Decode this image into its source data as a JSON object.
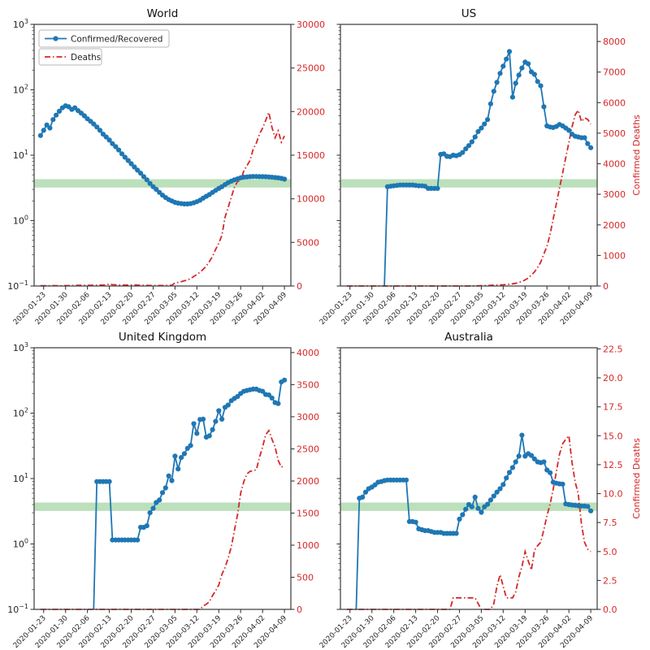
{
  "figure": {
    "background": "#ffffff",
    "colors": {
      "ratio": "#1f77b4",
      "deaths": "#d62728",
      "band": "#2ca02c",
      "band_opacity": 0.32,
      "axis": "#3a3a3a",
      "tick_text": "#262626",
      "right_tick_text": "#d62728",
      "legend_border": "#b7b7b7"
    },
    "legend": [
      {
        "label": "Confirmed/Recovered",
        "style": "solid-line-circle-marker",
        "color": "#1f77b4"
      },
      {
        "label": "Deaths",
        "style": "dash-dot-line",
        "color": "#d62728"
      }
    ],
    "left_axis": {
      "scale": "log",
      "ylim": [
        0.1,
        1000
      ],
      "tick_exponents": [
        -1,
        0,
        1,
        2,
        3
      ]
    },
    "band": {
      "ymin": 3.2,
      "ymax": 4.3
    },
    "x_tick_labels": [
      "2020-01-23",
      "2020-01-30",
      "2020-02-06",
      "2020-02-13",
      "2020-02-20",
      "2020-02-27",
      "2020-03-05",
      "2020-03-12",
      "2020-03-19",
      "2020-03-26",
      "2020-04-02",
      "2020-04-09"
    ],
    "x_tick_indices": [
      1,
      8,
      15,
      22,
      29,
      36,
      43,
      50,
      57,
      64,
      71,
      78
    ],
    "dates": [
      "2020-01-22",
      "2020-01-23",
      "2020-01-24",
      "2020-01-25",
      "2020-01-26",
      "2020-01-27",
      "2020-01-28",
      "2020-01-29",
      "2020-01-30",
      "2020-01-31",
      "2020-02-01",
      "2020-02-02",
      "2020-02-03",
      "2020-02-04",
      "2020-02-05",
      "2020-02-06",
      "2020-02-07",
      "2020-02-08",
      "2020-02-09",
      "2020-02-10",
      "2020-02-11",
      "2020-02-12",
      "2020-02-13",
      "2020-02-14",
      "2020-02-15",
      "2020-02-16",
      "2020-02-17",
      "2020-02-18",
      "2020-02-19",
      "2020-02-20",
      "2020-02-21",
      "2020-02-22",
      "2020-02-23",
      "2020-02-24",
      "2020-02-25",
      "2020-02-26",
      "2020-02-27",
      "2020-02-28",
      "2020-02-29",
      "2020-03-01",
      "2020-03-02",
      "2020-03-03",
      "2020-03-04",
      "2020-03-05",
      "2020-03-06",
      "2020-03-07",
      "2020-03-08",
      "2020-03-09",
      "2020-03-10",
      "2020-03-11",
      "2020-03-12",
      "2020-03-13",
      "2020-03-14",
      "2020-03-15",
      "2020-03-16",
      "2020-03-17",
      "2020-03-18",
      "2020-03-19",
      "2020-03-20",
      "2020-03-21",
      "2020-03-22",
      "2020-03-23",
      "2020-03-24",
      "2020-03-25",
      "2020-03-26",
      "2020-03-27",
      "2020-03-28",
      "2020-03-29",
      "2020-03-30",
      "2020-03-31",
      "2020-04-01",
      "2020-04-02",
      "2020-04-03",
      "2020-04-04",
      "2020-04-05",
      "2020-04-06",
      "2020-04-07",
      "2020-04-08",
      "2020-04-09"
    ]
  },
  "chart_data": [
    {
      "id": "world",
      "type": "line",
      "title": "World",
      "right_ymax": 30000,
      "right_ticks": [
        0,
        5000,
        10000,
        15000,
        20000,
        25000,
        30000
      ],
      "right_tick_labels": [
        "0",
        "5000",
        "10000",
        "15000",
        "20000",
        "25000",
        "30000"
      ],
      "right_ylabel": null,
      "series": [
        {
          "name": "Confirmed/Recovered",
          "axis": "left-log",
          "values": [
            20,
            24,
            29,
            26,
            35,
            41,
            47,
            53,
            57,
            55,
            50,
            53,
            48,
            44,
            40,
            36,
            33,
            30,
            27,
            24,
            21,
            19,
            17,
            15,
            13.5,
            12,
            10.5,
            9.3,
            8.3,
            7.4,
            6.6,
            5.9,
            5.3,
            4.7,
            4.2,
            3.7,
            3.3,
            3.0,
            2.7,
            2.45,
            2.25,
            2.1,
            2.0,
            1.9,
            1.85,
            1.82,
            1.8,
            1.8,
            1.82,
            1.87,
            1.95,
            2.05,
            2.2,
            2.35,
            2.5,
            2.7,
            2.9,
            3.1,
            3.3,
            3.55,
            3.8,
            4.0,
            4.2,
            4.35,
            4.5,
            4.6,
            4.65,
            4.7,
            4.72,
            4.72,
            4.7,
            4.7,
            4.68,
            4.65,
            4.6,
            4.55,
            4.5,
            4.42,
            4.3
          ]
        },
        {
          "name": "Deaths",
          "axis": "right-linear",
          "values": [
            25,
            25,
            30,
            35,
            45,
            40,
            30,
            40,
            45,
            45,
            55,
            65,
            70,
            75,
            70,
            75,
            85,
            90,
            95,
            100,
            105,
            110,
            254,
            150,
            143,
            110,
            100,
            105,
            100,
            110,
            120,
            100,
            90,
            80,
            70,
            60,
            55,
            52,
            55,
            58,
            65,
            75,
            90,
            350,
            420,
            500,
            600,
            700,
            850,
            1100,
            1300,
            1600,
            1900,
            2300,
            2800,
            3400,
            4200,
            4900,
            5800,
            7900,
            9000,
            10200,
            11300,
            12000,
            12100,
            13200,
            13800,
            14400,
            15700,
            16400,
            17400,
            18100,
            19000,
            19900,
            18200,
            17000,
            17800,
            16500,
            17200
          ]
        }
      ]
    },
    {
      "id": "us",
      "type": "line",
      "title": "US",
      "right_ymax": 8560,
      "right_ticks": [
        0,
        1000,
        2000,
        3000,
        4000,
        5000,
        6000,
        7000,
        8000
      ],
      "right_tick_labels": [
        "0",
        "1000",
        "2000",
        "3000",
        "4000",
        "5000",
        "6000",
        "7000",
        "8000"
      ],
      "right_ylabel": "Confirmed Deaths",
      "series": [
        {
          "name": "Confirmed/Recovered",
          "axis": "left-log",
          "values": [
            null,
            null,
            null,
            null,
            null,
            null,
            null,
            null,
            null,
            null,
            null,
            null,
            0,
            3.3,
            3.35,
            3.4,
            3.45,
            3.5,
            3.5,
            3.5,
            3.5,
            3.5,
            3.45,
            3.4,
            3.4,
            3.35,
            3.1,
            3.1,
            3.1,
            3.1,
            10.3,
            10.5,
            9.6,
            9.5,
            10.0,
            9.8,
            10.2,
            11,
            12.5,
            14,
            16,
            19,
            23,
            26,
            30,
            35,
            61,
            95,
            130,
            178,
            230,
            295,
            385,
            77,
            126,
            168,
            215,
            265,
            250,
            188,
            172,
            134,
            115,
            55,
            28,
            27,
            26.5,
            27.5,
            29.5,
            28,
            26,
            24,
            21,
            19.5,
            19,
            18.5,
            18.5,
            15,
            13
          ]
        },
        {
          "name": "Deaths",
          "axis": "right-linear",
          "values": [
            0,
            0,
            0,
            0,
            0,
            0,
            0,
            0,
            0,
            0,
            0,
            0,
            0,
            0,
            0,
            0,
            0,
            0,
            0,
            0,
            0,
            0,
            0,
            0,
            0,
            0,
            0,
            0,
            0,
            0,
            0,
            0,
            0,
            0,
            0,
            0,
            0,
            0,
            1,
            1,
            2,
            4,
            6,
            12,
            15,
            19,
            22,
            26,
            31,
            36,
            41,
            49,
            58,
            71,
            87,
            115,
            150,
            200,
            260,
            360,
            460,
            610,
            780,
            1050,
            1300,
            1700,
            2200,
            2700,
            3200,
            3700,
            4200,
            4700,
            5200,
            5600,
            5750,
            5380,
            5500,
            5450,
            5300
          ]
        }
      ]
    },
    {
      "id": "united-kingdom",
      "type": "line",
      "title": "United Kingdom",
      "right_ymax": 4075,
      "right_ticks": [
        0,
        500,
        1000,
        1500,
        2000,
        2500,
        3000,
        3500,
        4000
      ],
      "right_tick_labels": [
        "0",
        "500",
        "1000",
        "1500",
        "2000",
        "2500",
        "3000",
        "3500",
        "4000"
      ],
      "right_ylabel": null,
      "series": [
        {
          "name": "Confirmed/Recovered",
          "axis": "left-log",
          "values": [
            null,
            null,
            null,
            null,
            null,
            null,
            null,
            null,
            null,
            null,
            null,
            null,
            null,
            null,
            null,
            null,
            null,
            0,
            9,
            9,
            9,
            9,
            9,
            1.15,
            1.15,
            1.15,
            1.15,
            1.15,
            1.15,
            1.15,
            1.15,
            1.15,
            1.8,
            1.8,
            1.9,
            3.0,
            3.5,
            4.3,
            4.7,
            6.1,
            7.2,
            11,
            9.3,
            22,
            14,
            21,
            24,
            29,
            32,
            69,
            49,
            80,
            81,
            43,
            45,
            56,
            75,
            109,
            81,
            123,
            133,
            155,
            168,
            180,
            200,
            216,
            222,
            228,
            233,
            233,
            222,
            216,
            193,
            190,
            170,
            145,
            140,
            300,
            320
          ]
        },
        {
          "name": "Deaths",
          "axis": "right-linear",
          "values": [
            0,
            0,
            0,
            0,
            0,
            0,
            0,
            0,
            0,
            0,
            0,
            0,
            0,
            0,
            0,
            0,
            0,
            0,
            0,
            0,
            0,
            0,
            0,
            0,
            0,
            0,
            0,
            0,
            0,
            0,
            0,
            0,
            0,
            0,
            0,
            0,
            0,
            0,
            0,
            0,
            0,
            0,
            0,
            0,
            0,
            0,
            0,
            0,
            0,
            0,
            0,
            0,
            50,
            80,
            120,
            215,
            290,
            380,
            545,
            650,
            800,
            975,
            1230,
            1480,
            1810,
            1990,
            2110,
            2150,
            2160,
            2175,
            2365,
            2530,
            2720,
            2785,
            2650,
            2530,
            2320,
            2215,
            2250
          ]
        }
      ]
    },
    {
      "id": "australia",
      "type": "line",
      "title": "Australia",
      "right_ymax": 22.6,
      "right_ticks": [
        0,
        2.5,
        5,
        7.5,
        10,
        12.5,
        15,
        17.5,
        20,
        22.5
      ],
      "right_tick_labels": [
        "0.0",
        "2.5",
        "5.0",
        "7.5",
        "10.0",
        "12.5",
        "15.0",
        "17.5",
        "20.0",
        "22.5"
      ],
      "right_ylabel": "Confirmed Deaths",
      "series": [
        {
          "name": "Confirmed/Recovered",
          "axis": "left-log",
          "values": [
            null,
            null,
            null,
            0,
            5.0,
            5.2,
            6.2,
            7.0,
            7.4,
            8.0,
            8.8,
            9.0,
            9.3,
            9.5,
            9.5,
            9.5,
            9.5,
            9.5,
            9.5,
            9.5,
            2.2,
            2.2,
            2.15,
            1.7,
            1.65,
            1.6,
            1.6,
            1.55,
            1.5,
            1.5,
            1.5,
            1.45,
            1.45,
            1.45,
            1.45,
            1.45,
            2.4,
            2.8,
            3.4,
            4.0,
            3.7,
            5.2,
            3.5,
            3.05,
            3.7,
            4.05,
            4.7,
            5.4,
            6.2,
            7.0,
            8.1,
            10.2,
            12.4,
            14.7,
            18,
            22,
            46,
            22,
            24,
            22.5,
            20,
            18,
            17.5,
            18,
            13.5,
            12.3,
            8.8,
            8.5,
            8.3,
            8.2,
            4.1,
            4.0,
            3.95,
            3.9,
            3.85,
            3.8,
            3.8,
            3.75,
            3.2
          ]
        },
        {
          "name": "Deaths",
          "axis": "right-linear",
          "values": [
            0,
            0,
            0,
            0,
            0,
            0,
            0,
            0,
            0,
            0,
            0,
            0,
            0,
            0,
            0,
            0,
            0,
            0,
            0,
            0,
            0,
            0,
            0,
            0,
            0,
            0,
            0,
            0,
            0,
            0,
            0,
            0,
            0,
            0,
            1,
            1,
            1,
            1,
            1,
            1,
            1,
            1,
            0.5,
            0,
            0,
            0,
            0,
            0.5,
            2,
            3,
            2,
            1,
            1,
            1,
            1.5,
            2.8,
            3.7,
            5.0,
            4.2,
            3.4,
            5.1,
            5.5,
            5.8,
            6.9,
            8.1,
            9.1,
            10.4,
            11.9,
            13.4,
            14.3,
            14.7,
            15.0,
            12.7,
            11.0,
            10.0,
            7.4,
            5.8,
            5.2,
            5.0
          ]
        }
      ]
    }
  ]
}
